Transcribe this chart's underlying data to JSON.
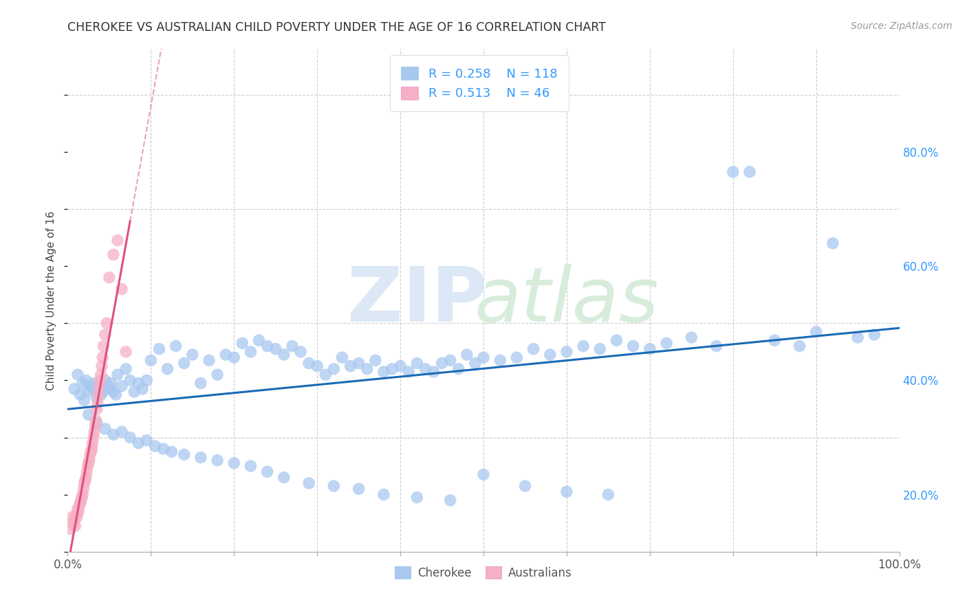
{
  "title": "CHEROKEE VS AUSTRALIAN CHILD POVERTY UNDER THE AGE OF 16 CORRELATION CHART",
  "source": "Source: ZipAtlas.com",
  "ylabel": "Child Poverty Under the Age of 16",
  "xlim": [
    0.0,
    1.0
  ],
  "ylim": [
    0.0,
    0.88
  ],
  "cherokee_R": 0.258,
  "cherokee_N": 118,
  "australian_R": 0.513,
  "australian_N": 46,
  "cherokee_color": "#a8c8f0",
  "australian_color": "#f5b0c5",
  "trend_cherokee_color": "#1a6ab5",
  "trend_australian_color": "#e0507a",
  "background_color": "#ffffff",
  "legend_label_cherokee": "Cherokee",
  "legend_label_australian": "Australians",
  "cherokee_x": [
    0.008,
    0.012,
    0.015,
    0.018,
    0.02,
    0.022,
    0.025,
    0.028,
    0.03,
    0.032,
    0.035,
    0.038,
    0.04,
    0.042,
    0.045,
    0.048,
    0.05,
    0.052,
    0.055,
    0.058,
    0.06,
    0.065,
    0.07,
    0.075,
    0.08,
    0.085,
    0.09,
    0.095,
    0.1,
    0.11,
    0.12,
    0.13,
    0.14,
    0.15,
    0.16,
    0.17,
    0.18,
    0.19,
    0.2,
    0.21,
    0.22,
    0.23,
    0.24,
    0.25,
    0.26,
    0.27,
    0.28,
    0.29,
    0.3,
    0.31,
    0.32,
    0.33,
    0.34,
    0.35,
    0.36,
    0.37,
    0.38,
    0.39,
    0.4,
    0.41,
    0.42,
    0.43,
    0.44,
    0.45,
    0.46,
    0.47,
    0.48,
    0.49,
    0.5,
    0.52,
    0.54,
    0.56,
    0.58,
    0.6,
    0.62,
    0.64,
    0.66,
    0.68,
    0.7,
    0.72,
    0.75,
    0.78,
    0.8,
    0.82,
    0.85,
    0.88,
    0.9,
    0.92,
    0.95,
    0.97,
    0.025,
    0.035,
    0.045,
    0.055,
    0.065,
    0.075,
    0.085,
    0.095,
    0.105,
    0.115,
    0.125,
    0.14,
    0.16,
    0.18,
    0.2,
    0.22,
    0.24,
    0.26,
    0.29,
    0.32,
    0.35,
    0.38,
    0.42,
    0.46,
    0.5,
    0.55,
    0.6,
    0.65
  ],
  "cherokee_y": [
    0.285,
    0.31,
    0.275,
    0.295,
    0.265,
    0.3,
    0.28,
    0.29,
    0.285,
    0.295,
    0.27,
    0.285,
    0.275,
    0.28,
    0.3,
    0.29,
    0.285,
    0.295,
    0.28,
    0.275,
    0.31,
    0.29,
    0.32,
    0.3,
    0.28,
    0.295,
    0.285,
    0.3,
    0.335,
    0.355,
    0.32,
    0.36,
    0.33,
    0.345,
    0.295,
    0.335,
    0.31,
    0.345,
    0.34,
    0.365,
    0.35,
    0.37,
    0.36,
    0.355,
    0.345,
    0.36,
    0.35,
    0.33,
    0.325,
    0.31,
    0.32,
    0.34,
    0.325,
    0.33,
    0.32,
    0.335,
    0.315,
    0.32,
    0.325,
    0.315,
    0.33,
    0.32,
    0.315,
    0.33,
    0.335,
    0.32,
    0.345,
    0.33,
    0.34,
    0.335,
    0.34,
    0.355,
    0.345,
    0.35,
    0.36,
    0.355,
    0.37,
    0.36,
    0.355,
    0.365,
    0.375,
    0.36,
    0.665,
    0.665,
    0.37,
    0.36,
    0.385,
    0.54,
    0.375,
    0.38,
    0.24,
    0.225,
    0.215,
    0.205,
    0.21,
    0.2,
    0.19,
    0.195,
    0.185,
    0.18,
    0.175,
    0.17,
    0.165,
    0.16,
    0.155,
    0.15,
    0.14,
    0.13,
    0.12,
    0.115,
    0.11,
    0.1,
    0.095,
    0.09,
    0.135,
    0.115,
    0.105,
    0.1
  ],
  "australian_x": [
    0.003,
    0.005,
    0.007,
    0.008,
    0.009,
    0.01,
    0.011,
    0.012,
    0.013,
    0.014,
    0.015,
    0.016,
    0.017,
    0.018,
    0.019,
    0.02,
    0.021,
    0.022,
    0.023,
    0.024,
    0.025,
    0.026,
    0.027,
    0.028,
    0.029,
    0.03,
    0.031,
    0.032,
    0.033,
    0.034,
    0.035,
    0.036,
    0.037,
    0.038,
    0.039,
    0.04,
    0.041,
    0.042,
    0.043,
    0.045,
    0.047,
    0.05,
    0.055,
    0.06,
    0.065,
    0.07
  ],
  "australian_y": [
    0.04,
    0.06,
    0.05,
    0.055,
    0.045,
    0.065,
    0.06,
    0.075,
    0.07,
    0.08,
    0.085,
    0.09,
    0.095,
    0.1,
    0.11,
    0.12,
    0.125,
    0.13,
    0.14,
    0.15,
    0.155,
    0.16,
    0.17,
    0.175,
    0.18,
    0.19,
    0.2,
    0.21,
    0.22,
    0.23,
    0.25,
    0.26,
    0.275,
    0.29,
    0.3,
    0.31,
    0.325,
    0.34,
    0.36,
    0.38,
    0.4,
    0.48,
    0.52,
    0.545,
    0.46,
    0.35
  ],
  "aust_trend_solid_end": 0.075,
  "aust_trend_dashed_end": 0.19
}
